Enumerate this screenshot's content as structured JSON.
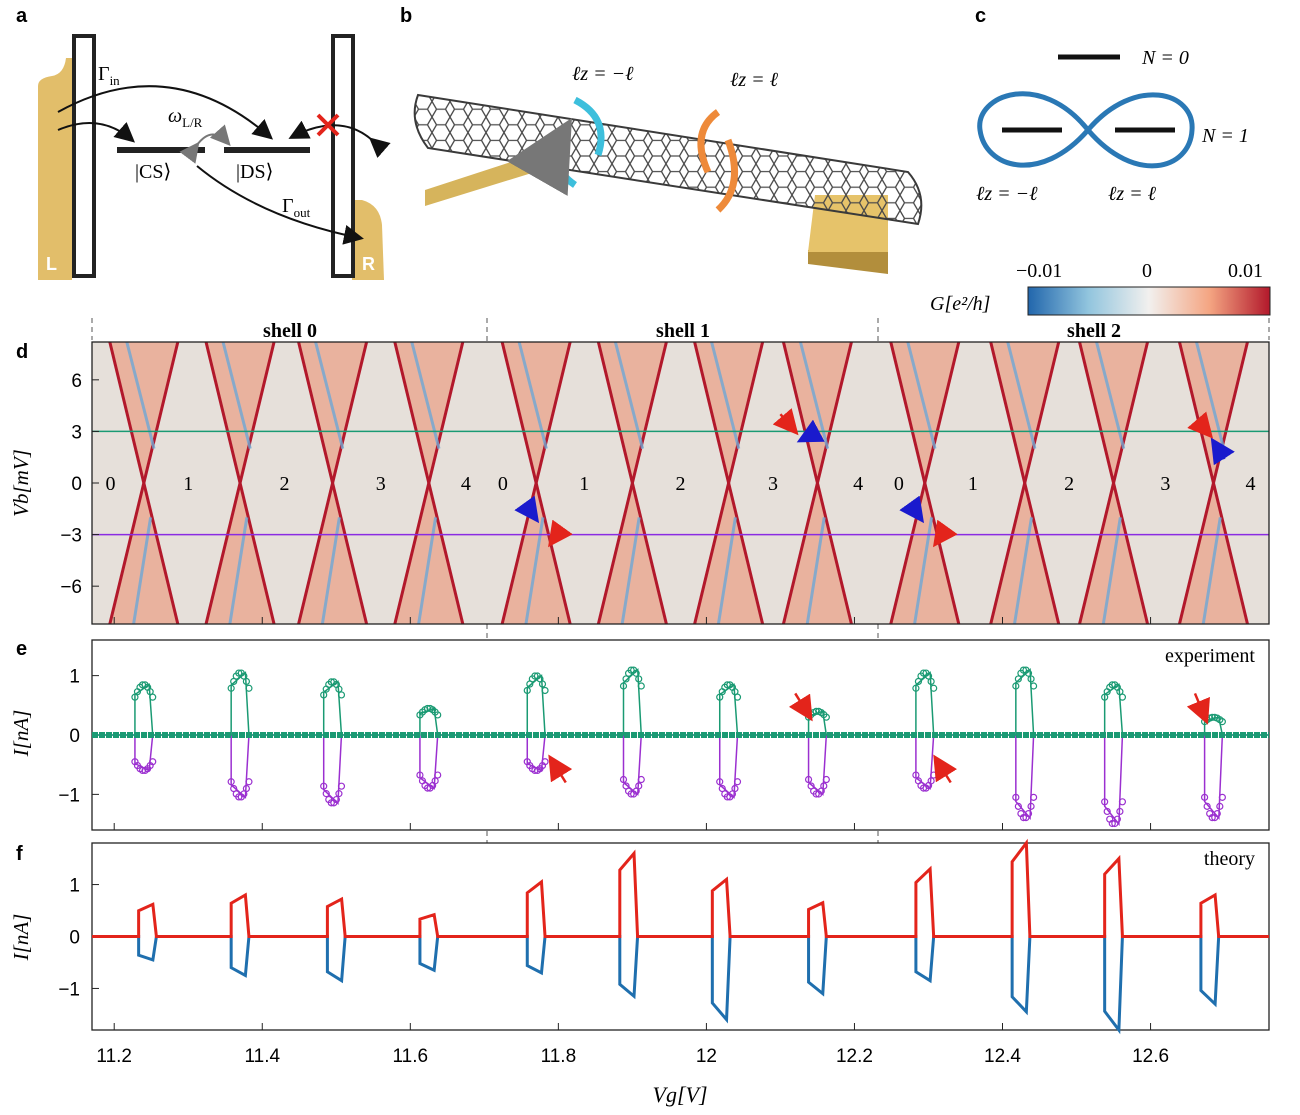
{
  "panel_labels": [
    "a",
    "b",
    "c",
    "d",
    "e",
    "f"
  ],
  "panel_a": {
    "lead_left": "L",
    "lead_right": "R",
    "state_cs": "|CS⟩",
    "state_ds": "|DS⟩",
    "gamma_in": "Γ",
    "gamma_in_sub": "in",
    "gamma_out": "Γ",
    "gamma_out_sub": "out",
    "omega": "ω",
    "omega_sub": "L/R",
    "colors": {
      "lead": "#E2BE6A",
      "barrier": "#222222",
      "cross": "#e3241b"
    }
  },
  "panel_b": {
    "label_minus": "ℓz = −ℓ",
    "label_plus": "ℓz = ℓ",
    "colors": {
      "arrow_minus": "#3dbfdc",
      "arrow_plus": "#ee8a3a",
      "contact": "#E2BE6A",
      "tube": "#4a4a4a"
    }
  },
  "panel_c": {
    "level_n0": "N = 0",
    "level_n1": "N = 1",
    "label_minus": "ℓz = −ℓ",
    "label_plus": "ℓz = ℓ",
    "colors": {
      "orbit": "#2a78b5"
    }
  },
  "colorbar": {
    "label": "G[e²/h]",
    "ticks": [
      "−0.01",
      "0",
      "0.01"
    ],
    "colors": {
      "neg": "#2166ac",
      "mid": "#f2f0ee",
      "pos": "#b2182b"
    }
  },
  "panel_d": {
    "shell_labels": [
      "shell 0",
      "shell 1",
      "shell 2"
    ],
    "ylabel": "Vb[mV]",
    "yticks": [
      "6",
      "3",
      "0",
      "−3",
      "−6"
    ],
    "occupancy": [
      "0",
      "1",
      "2",
      "3",
      "4",
      "0",
      "1",
      "2",
      "3",
      "4",
      "0",
      "1",
      "2",
      "3",
      "4"
    ],
    "cuts_mV": [
      3,
      -3
    ],
    "colors": {
      "cut_pos": "#1a9a73",
      "cut_neg": "#8a2be2",
      "background": "#e6e0da",
      "arrow_red": "#e3241b",
      "arrow_blue": "#1a1acd"
    }
  },
  "panel_e": {
    "corner_label": "experiment",
    "ylabel": "I[nA]",
    "yticks": [
      "1",
      "0",
      "−1"
    ],
    "colors": {
      "pos": "#1a9a73",
      "neg": "#9b30d0"
    }
  },
  "panel_f": {
    "corner_label": "theory",
    "ylabel": "I[nA]",
    "yticks": [
      "1",
      "0",
      "−1"
    ],
    "colors": {
      "pos": "#e3241b",
      "neg": "#1f6fae"
    }
  },
  "xaxis": {
    "label": "Vg[V]",
    "ticks": [
      "11.2",
      "11.4",
      "11.6",
      "11.8",
      "12",
      "12.2",
      "12.4",
      "12.6"
    ]
  },
  "chart_data": [
    {
      "type": "line",
      "panel": "e",
      "series": [
        {
          "name": "Vb = 3 mV",
          "peak_centers_V": [
            11.24,
            11.37,
            11.495,
            11.625,
            11.77,
            11.9,
            12.03,
            12.15,
            12.295,
            12.43,
            12.55,
            12.685
          ],
          "peak_values_nA": [
            0.85,
            1.05,
            0.9,
            0.45,
            1.0,
            1.1,
            0.85,
            0.4,
            1.05,
            1.1,
            0.85,
            0.3
          ]
        },
        {
          "name": "Vb = -3 mV",
          "peak_centers_V": [
            11.24,
            11.37,
            11.495,
            11.625,
            11.77,
            11.9,
            12.03,
            12.15,
            12.295,
            12.43,
            12.55,
            12.685
          ],
          "peak_values_nA": [
            -0.6,
            -1.05,
            -1.15,
            -0.9,
            -0.6,
            -1.0,
            -1.05,
            -1.0,
            -0.9,
            -1.4,
            -1.5,
            -1.4
          ]
        }
      ],
      "ylim": [
        -1.6,
        1.6
      ],
      "xlim": [
        11.17,
        12.76
      ]
    },
    {
      "type": "line",
      "panel": "f",
      "series": [
        {
          "name": "Vb = 3 mV",
          "peak_centers_V": [
            11.245,
            11.37,
            11.5,
            11.625,
            11.77,
            11.895,
            12.02,
            12.15,
            12.295,
            12.425,
            12.55,
            12.68
          ],
          "peak_values_nA": [
            0.62,
            0.8,
            0.72,
            0.42,
            1.05,
            1.6,
            1.1,
            0.65,
            1.3,
            1.8,
            1.5,
            0.8
          ]
        },
        {
          "name": "Vb = -3 mV",
          "peak_centers_V": [
            11.245,
            11.37,
            11.5,
            11.625,
            11.77,
            11.895,
            12.02,
            12.15,
            12.295,
            12.425,
            12.55,
            12.68
          ],
          "peak_values_nA": [
            -0.45,
            -0.75,
            -0.85,
            -0.65,
            -0.7,
            -1.15,
            -1.6,
            -1.1,
            -0.85,
            -1.45,
            -1.8,
            -1.3
          ]
        }
      ],
      "ylim": [
        -1.8,
        1.8
      ],
      "xlim": [
        11.17,
        12.76
      ]
    }
  ]
}
